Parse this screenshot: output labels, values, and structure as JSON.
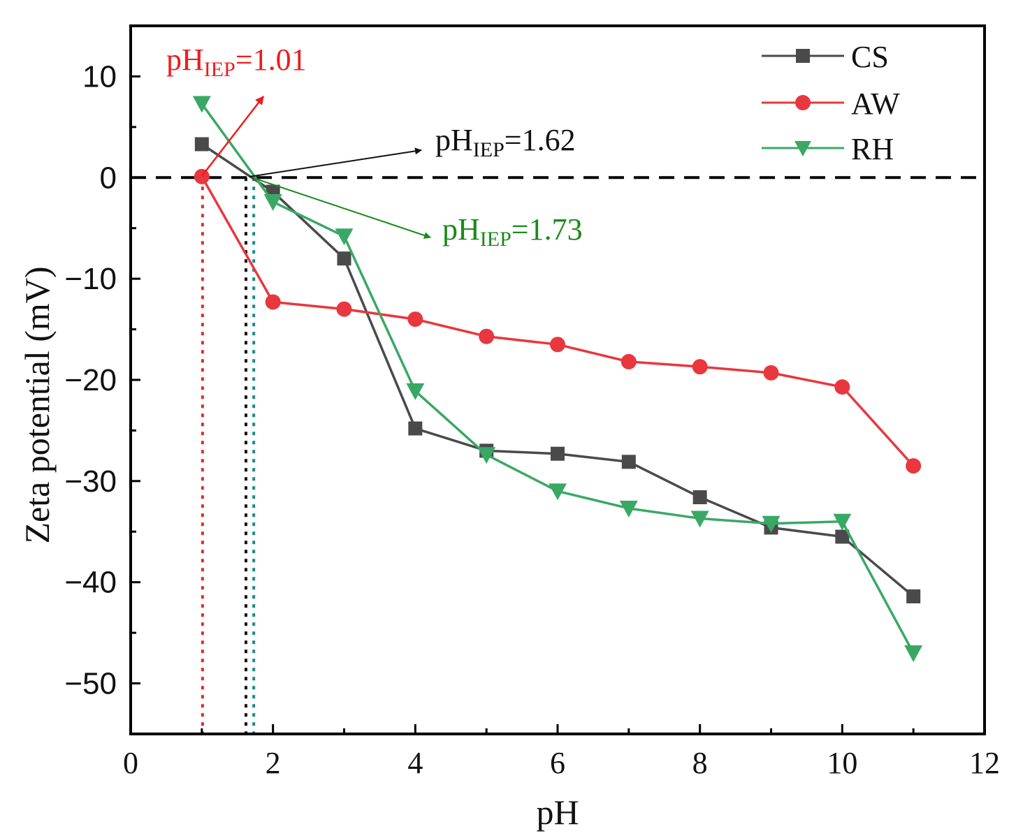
{
  "chart_data": {
    "type": "line",
    "xlabel": "pH",
    "ylabel": "Zeta potential (mV)",
    "xlim": [
      0,
      12
    ],
    "ylim": [
      -55,
      15
    ],
    "xticks": [
      "0",
      "2",
      "4",
      "6",
      "8",
      "10",
      "12"
    ],
    "yticks": [
      "10",
      "0",
      "−10",
      "−20",
      "−30",
      "−40",
      "−50"
    ],
    "legend_position": "top-right",
    "series": [
      {
        "name": "CS",
        "color": "#4a4a4a",
        "marker": "square",
        "x": [
          1,
          2,
          3,
          4,
          5,
          6,
          7,
          8,
          9,
          10,
          11
        ],
        "y": [
          3.3,
          -1.4,
          -8.0,
          -24.8,
          -27.0,
          -27.3,
          -28.1,
          -31.6,
          -34.6,
          -35.5,
          -41.4
        ]
      },
      {
        "name": "AW",
        "color": "#e8373e",
        "marker": "circle",
        "x": [
          1,
          2,
          3,
          4,
          5,
          6,
          7,
          8,
          9,
          10,
          11
        ],
        "y": [
          0.1,
          -12.3,
          -13.0,
          -14.0,
          -15.7,
          -16.5,
          -18.2,
          -18.7,
          -19.3,
          -20.7,
          -28.5
        ]
      },
      {
        "name": "RH",
        "color": "#3aa865",
        "marker": "triangle-down",
        "x": [
          1,
          2,
          3,
          4,
          5,
          6,
          7,
          8,
          9,
          10,
          11
        ],
        "y": [
          7.3,
          -2.4,
          -5.8,
          -21.1,
          -27.4,
          -31.0,
          -32.7,
          -33.7,
          -34.2,
          -34.0,
          -47.0
        ]
      }
    ],
    "reference_lines": {
      "zero_line": 0,
      "iep": [
        {
          "x": 1.01,
          "color": "#e8282a"
        },
        {
          "x": 1.62,
          "color": "#111111"
        },
        {
          "x": 1.73,
          "color": "#1a8a8a"
        }
      ]
    },
    "annotations": [
      {
        "prefix": "pH",
        "sub": "IEP",
        "suffix": "=1.01",
        "color": "#ee1c1c"
      },
      {
        "prefix": "pH",
        "sub": "IEP",
        "suffix": "=1.62",
        "color": "#111111"
      },
      {
        "prefix": "pH",
        "sub": "IEP",
        "suffix": "=1.73",
        "color": "#1a8a1a"
      }
    ]
  }
}
